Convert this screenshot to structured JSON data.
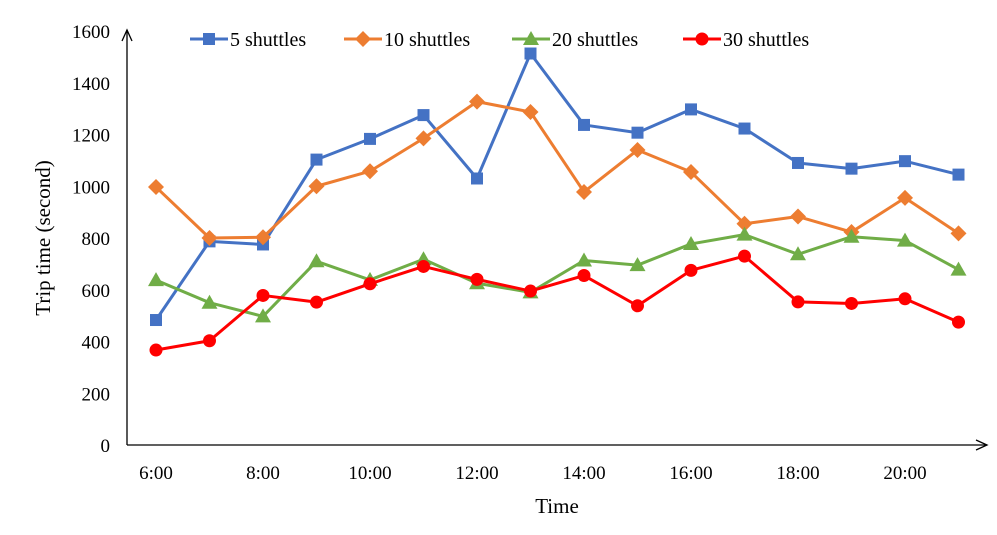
{
  "chart_data": {
    "type": "line",
    "title": "",
    "xlabel": "Time",
    "ylabel": "Trip time (second)",
    "ylim": [
      0,
      1600
    ],
    "yticks": [
      0,
      200,
      400,
      600,
      800,
      1000,
      1200,
      1400,
      1600
    ],
    "grid": false,
    "legend_position": "top",
    "x": [
      6,
      7,
      8,
      9,
      10,
      11,
      12,
      13,
      14,
      15,
      16,
      17,
      18,
      19,
      20,
      21
    ],
    "xtick_labels": [
      "6:00",
      "8:00",
      "10:00",
      "12:00",
      "14:00",
      "16:00",
      "18:00",
      "20:00"
    ],
    "series": [
      {
        "name": "5 shuttles",
        "color": "#4472C4",
        "marker": "square",
        "values": [
          483,
          787,
          775,
          1103,
          1183,
          1275,
          1030,
          1513,
          1237,
          1207,
          1297,
          1223,
          1090,
          1068,
          1097,
          1045
        ]
      },
      {
        "name": "10 shuttles",
        "color": "#ED7D31",
        "marker": "diamond",
        "values": [
          997,
          800,
          803,
          1000,
          1058,
          1185,
          1327,
          1287,
          978,
          1140,
          1055,
          855,
          883,
          823,
          955,
          818
        ]
      },
      {
        "name": "20 shuttles",
        "color": "#70AD47",
        "marker": "triangle",
        "values": [
          637,
          550,
          497,
          710,
          638,
          718,
          625,
          590,
          713,
          695,
          777,
          813,
          737,
          805,
          790,
          678
        ]
      },
      {
        "name": "30 shuttles",
        "color": "#FF0000",
        "marker": "circle",
        "values": [
          367,
          403,
          578,
          552,
          623,
          690,
          640,
          595,
          655,
          538,
          675,
          730,
          553,
          547,
          565,
          475
        ]
      }
    ]
  }
}
